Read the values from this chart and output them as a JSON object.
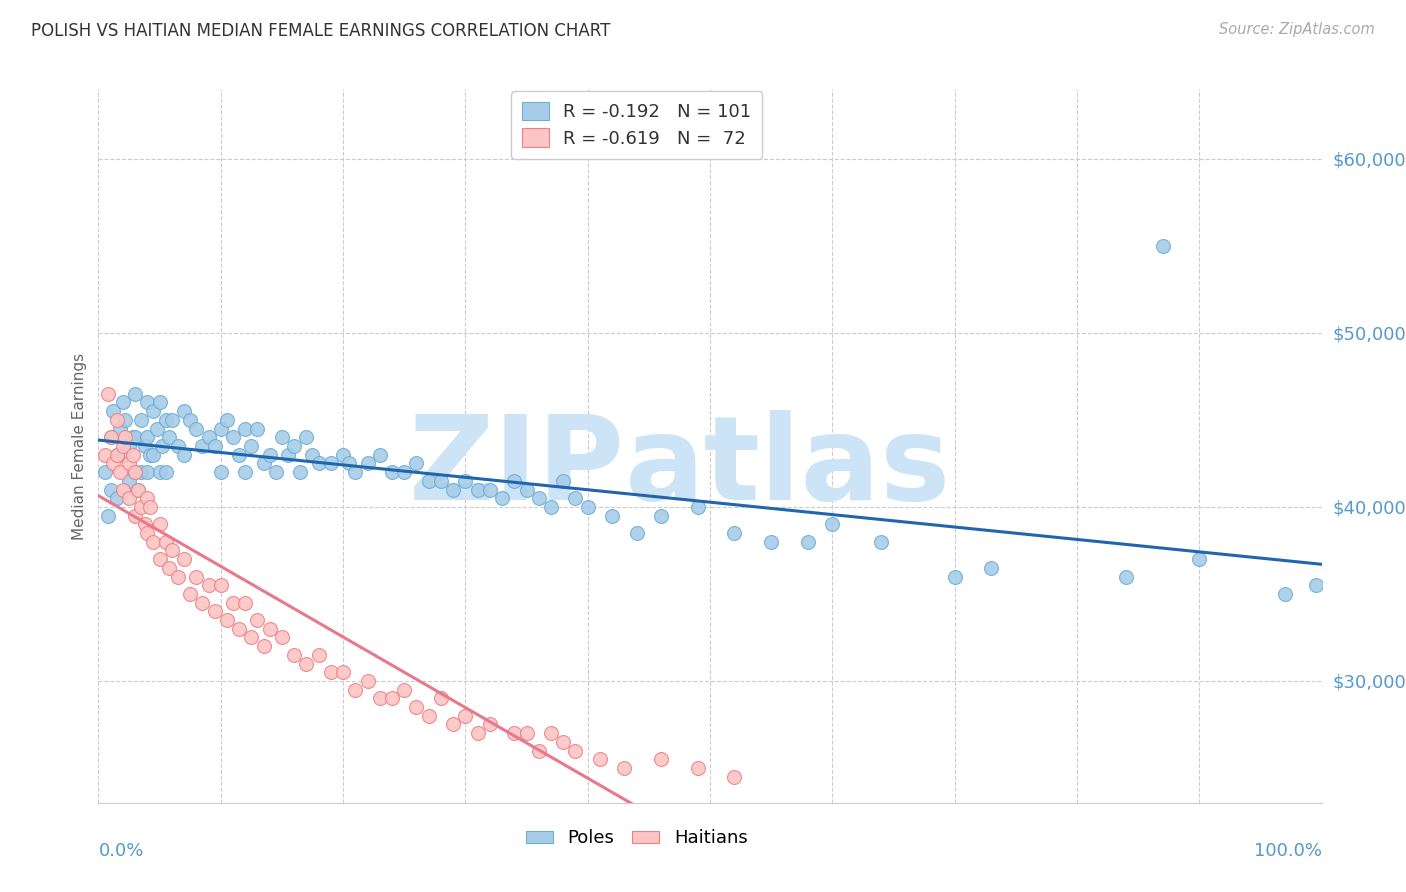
{
  "title": "POLISH VS HAITIAN MEDIAN FEMALE EARNINGS CORRELATION CHART",
  "source": "Source: ZipAtlas.com",
  "ylabel": "Median Female Earnings",
  "yaxis_values": [
    30000,
    40000,
    50000,
    60000
  ],
  "ylim": [
    23000,
    64000
  ],
  "xlim": [
    0.0,
    1.0
  ],
  "poles_scatter_color": "#a8cce8",
  "poles_scatter_edgecolor": "#6baed6",
  "haitians_scatter_color": "#fcc5c5",
  "haitians_scatter_edgecolor": "#f08080",
  "poles_line_color": "#2166ac",
  "haitians_line_color": "#e8788a",
  "watermark_zip_color": "#cce4f5",
  "watermark_atlas_color": "#cce4f5",
  "background_color": "#ffffff",
  "grid_color": "#cccccc",
  "title_color": "#333333",
  "axis_tick_color": "#5599cc",
  "yaxis_label_color": "#5599cc",
  "poles_R": -0.192,
  "poles_N": 101,
  "haitians_R": -0.619,
  "haitians_N": 72,
  "poles_x": [
    0.005,
    0.008,
    0.01,
    0.01,
    0.012,
    0.015,
    0.015,
    0.018,
    0.02,
    0.02,
    0.022,
    0.025,
    0.025,
    0.028,
    0.03,
    0.03,
    0.03,
    0.032,
    0.035,
    0.035,
    0.038,
    0.04,
    0.04,
    0.04,
    0.042,
    0.045,
    0.045,
    0.048,
    0.05,
    0.05,
    0.052,
    0.055,
    0.055,
    0.058,
    0.06,
    0.065,
    0.07,
    0.07,
    0.075,
    0.08,
    0.085,
    0.09,
    0.095,
    0.1,
    0.1,
    0.105,
    0.11,
    0.115,
    0.12,
    0.12,
    0.125,
    0.13,
    0.135,
    0.14,
    0.145,
    0.15,
    0.155,
    0.16,
    0.165,
    0.17,
    0.175,
    0.18,
    0.19,
    0.2,
    0.205,
    0.21,
    0.22,
    0.23,
    0.24,
    0.25,
    0.26,
    0.27,
    0.28,
    0.29,
    0.3,
    0.31,
    0.32,
    0.33,
    0.34,
    0.35,
    0.36,
    0.37,
    0.38,
    0.39,
    0.4,
    0.42,
    0.44,
    0.46,
    0.49,
    0.52,
    0.55,
    0.58,
    0.6,
    0.64,
    0.7,
    0.73,
    0.84,
    0.87,
    0.9,
    0.97,
    0.995
  ],
  "poles_y": [
    42000,
    39500,
    44000,
    41000,
    45500,
    43000,
    40500,
    44500,
    46000,
    43000,
    45000,
    43500,
    41500,
    44000,
    46500,
    44000,
    42000,
    41000,
    45000,
    42000,
    43500,
    46000,
    44000,
    42000,
    43000,
    45500,
    43000,
    44500,
    46000,
    42000,
    43500,
    45000,
    42000,
    44000,
    45000,
    43500,
    45500,
    43000,
    45000,
    44500,
    43500,
    44000,
    43500,
    44500,
    42000,
    45000,
    44000,
    43000,
    44500,
    42000,
    43500,
    44500,
    42500,
    43000,
    42000,
    44000,
    43000,
    43500,
    42000,
    44000,
    43000,
    42500,
    42500,
    43000,
    42500,
    42000,
    42500,
    43000,
    42000,
    42000,
    42500,
    41500,
    41500,
    41000,
    41500,
    41000,
    41000,
    40500,
    41500,
    41000,
    40500,
    40000,
    41500,
    40500,
    40000,
    39500,
    38500,
    39500,
    40000,
    38500,
    38000,
    38000,
    39000,
    38000,
    36000,
    36500,
    36000,
    55000,
    37000,
    35000,
    35500
  ],
  "haitians_x": [
    0.005,
    0.008,
    0.01,
    0.012,
    0.015,
    0.015,
    0.018,
    0.02,
    0.02,
    0.022,
    0.025,
    0.025,
    0.028,
    0.03,
    0.03,
    0.032,
    0.035,
    0.038,
    0.04,
    0.04,
    0.042,
    0.045,
    0.05,
    0.05,
    0.055,
    0.058,
    0.06,
    0.065,
    0.07,
    0.075,
    0.08,
    0.085,
    0.09,
    0.095,
    0.1,
    0.105,
    0.11,
    0.115,
    0.12,
    0.125,
    0.13,
    0.135,
    0.14,
    0.15,
    0.16,
    0.17,
    0.18,
    0.19,
    0.2,
    0.21,
    0.22,
    0.23,
    0.24,
    0.25,
    0.26,
    0.27,
    0.28,
    0.29,
    0.3,
    0.31,
    0.32,
    0.34,
    0.35,
    0.36,
    0.37,
    0.38,
    0.39,
    0.41,
    0.43,
    0.46,
    0.49,
    0.52
  ],
  "haitians_y": [
    43000,
    46500,
    44000,
    42500,
    45000,
    43000,
    42000,
    43500,
    41000,
    44000,
    42500,
    40500,
    43000,
    42000,
    39500,
    41000,
    40000,
    39000,
    40500,
    38500,
    40000,
    38000,
    39000,
    37000,
    38000,
    36500,
    37500,
    36000,
    37000,
    35000,
    36000,
    34500,
    35500,
    34000,
    35500,
    33500,
    34500,
    33000,
    34500,
    32500,
    33500,
    32000,
    33000,
    32500,
    31500,
    31000,
    31500,
    30500,
    30500,
    29500,
    30000,
    29000,
    29000,
    29500,
    28500,
    28000,
    29000,
    27500,
    28000,
    27000,
    27500,
    27000,
    27000,
    26000,
    27000,
    26500,
    26000,
    25500,
    25000,
    25500,
    25000,
    24500
  ]
}
